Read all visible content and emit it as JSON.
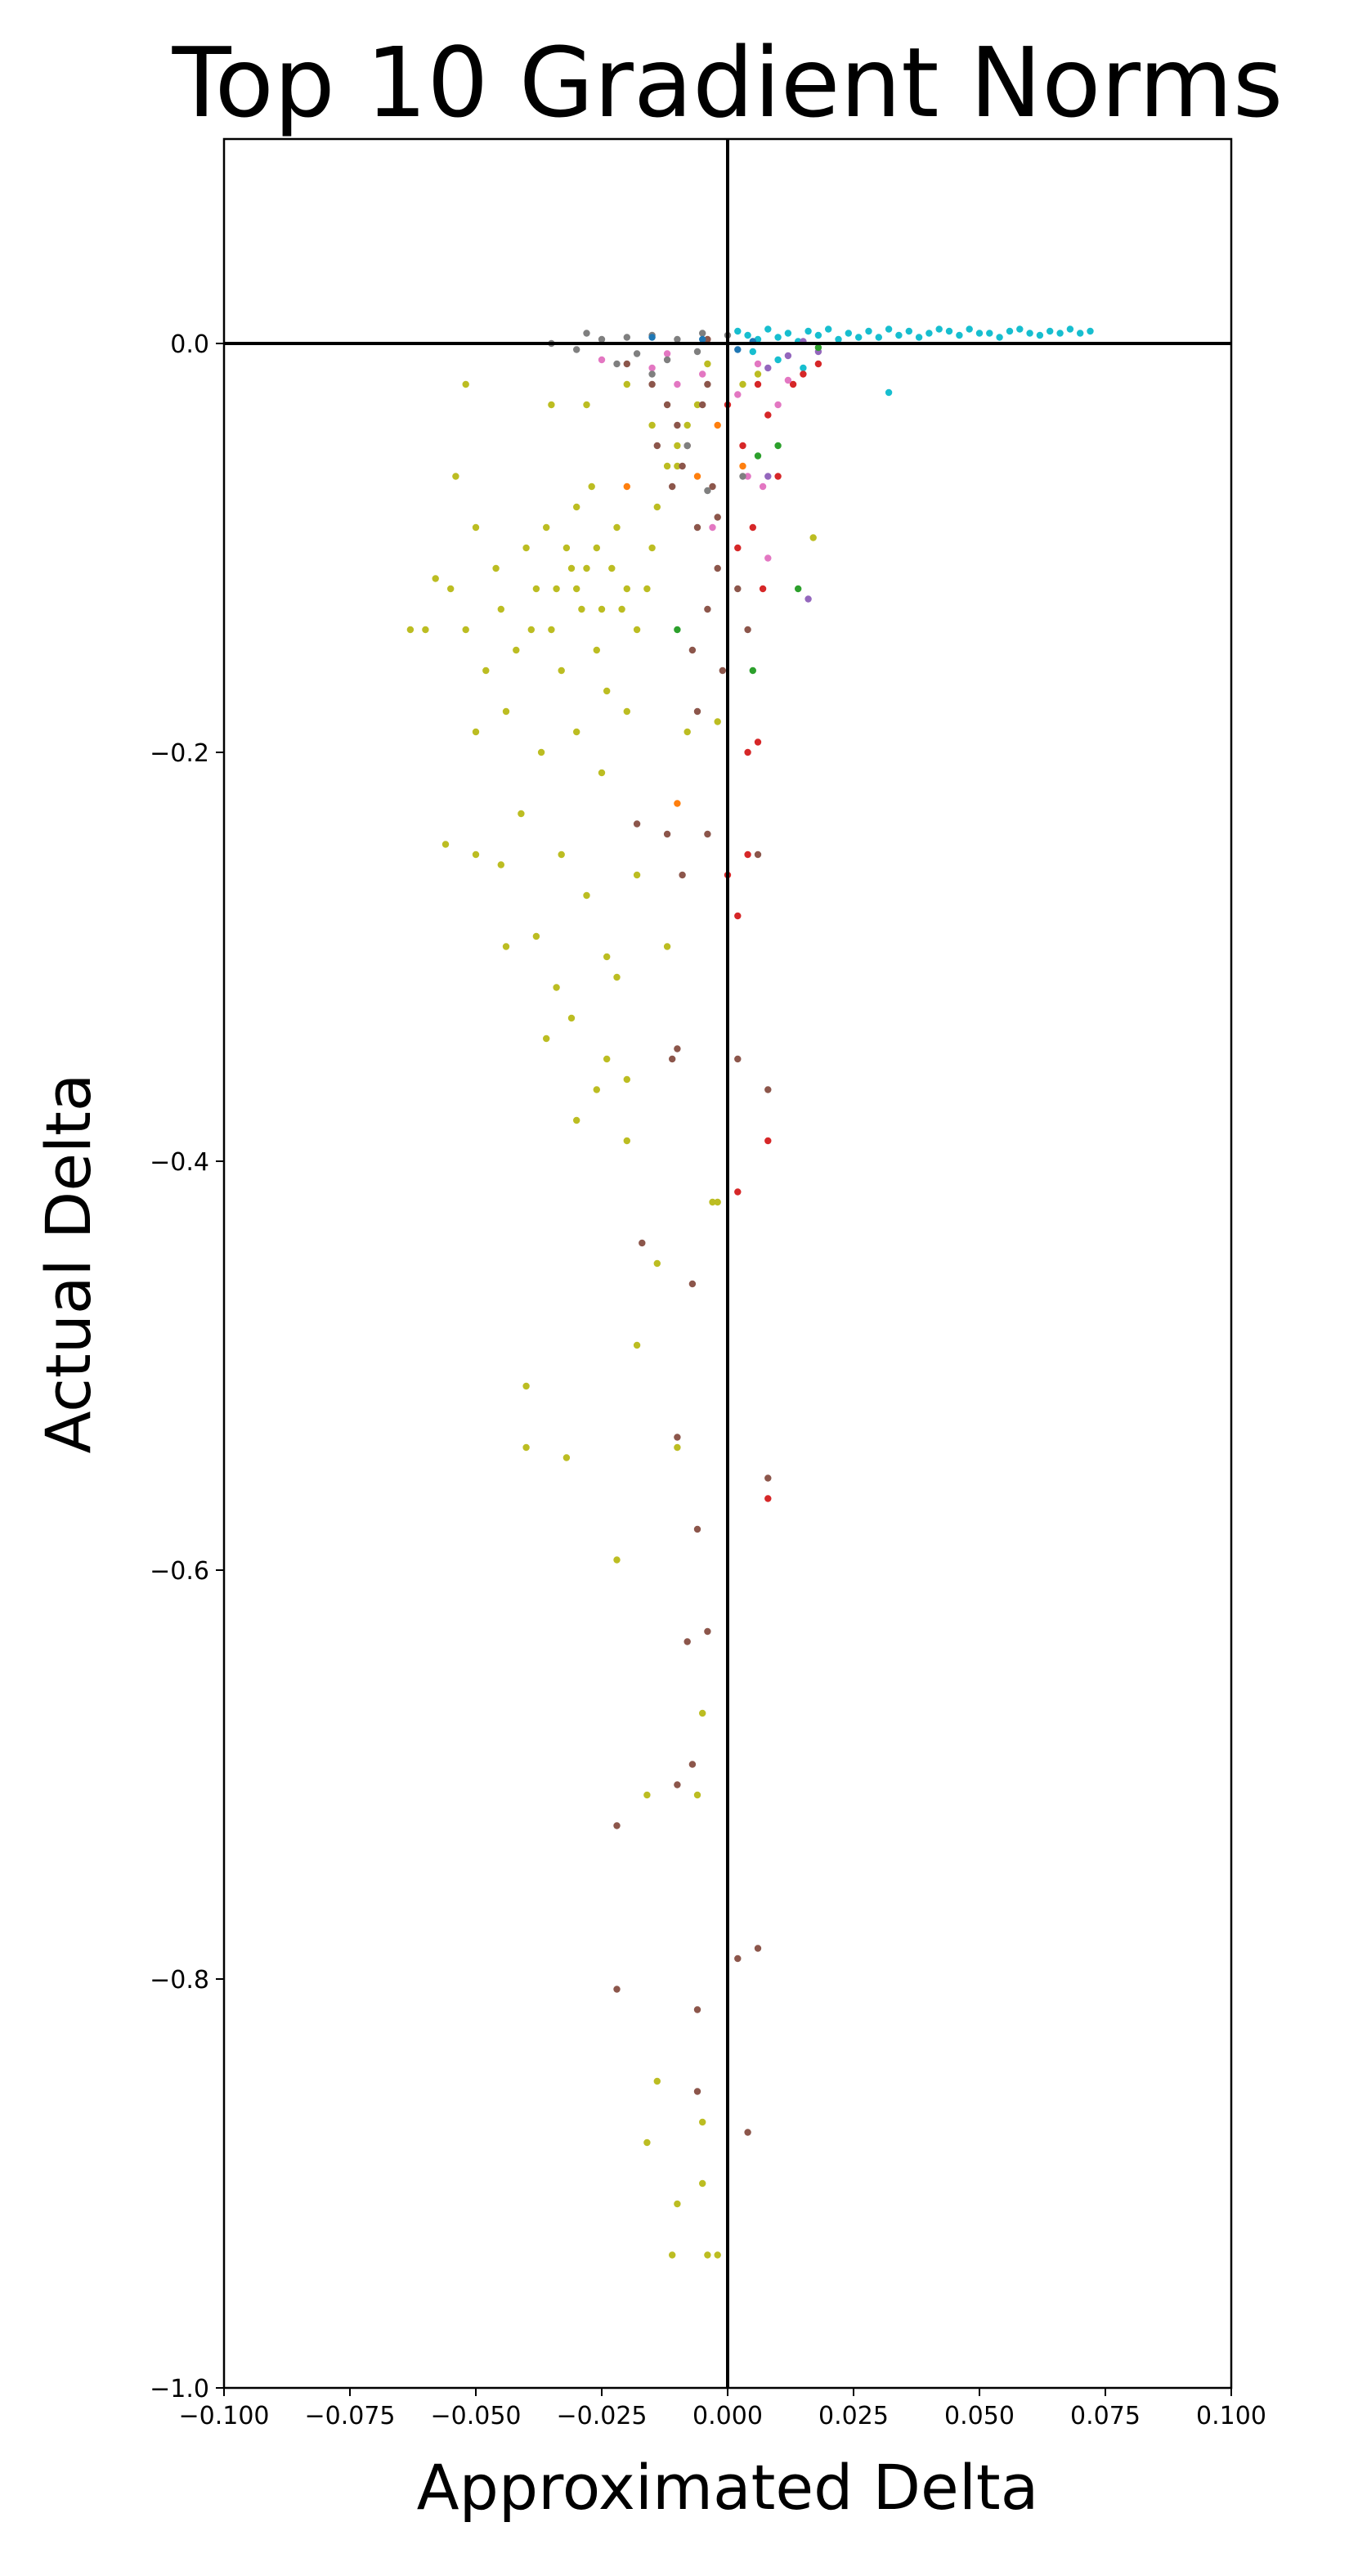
{
  "chart_data": {
    "type": "scatter",
    "title": "Top 10 Gradient Norms",
    "xlabel": "Approximated Delta",
    "ylabel": "Actual Delta",
    "xlim": [
      -0.1,
      0.1
    ],
    "ylim": [
      -1.0,
      0.1
    ],
    "xticks": [
      -0.1,
      -0.075,
      -0.05,
      -0.025,
      0.0,
      0.025,
      0.05,
      0.075,
      0.1
    ],
    "xtick_labels": [
      "−0.100",
      "−0.075",
      "−0.050",
      "−0.025",
      "0.000",
      "0.025",
      "0.050",
      "0.075",
      "0.100"
    ],
    "yticks": [
      0.0,
      -0.2,
      -0.4,
      -0.6,
      -0.8,
      -1.0
    ],
    "ytick_labels": [
      "0.0",
      "−0.2",
      "−0.4",
      "−0.6",
      "−0.8",
      "−1.0"
    ],
    "reference_lines": {
      "x": 0.0,
      "y": 0.0,
      "color": "#000000"
    },
    "grid": false,
    "legend": "none",
    "series": [
      {
        "color": "#17becf",
        "points": [
          [
            0.002,
            0.006
          ],
          [
            0.008,
            0.007
          ],
          [
            0.012,
            0.005
          ],
          [
            0.016,
            0.006
          ],
          [
            0.02,
            0.007
          ],
          [
            0.024,
            0.005
          ],
          [
            0.028,
            0.006
          ],
          [
            0.032,
            0.007
          ],
          [
            0.036,
            0.006
          ],
          [
            0.04,
            0.005
          ],
          [
            0.044,
            0.006
          ],
          [
            0.048,
            0.007
          ],
          [
            0.052,
            0.005
          ],
          [
            0.056,
            0.006
          ],
          [
            0.06,
            0.005
          ],
          [
            0.064,
            0.006
          ],
          [
            0.068,
            0.007
          ],
          [
            0.072,
            0.006
          ],
          [
            0.066,
            0.005
          ],
          [
            0.058,
            0.007
          ],
          [
            0.05,
            0.005
          ],
          [
            0.042,
            0.007
          ],
          [
            0.034,
            0.004
          ],
          [
            0.026,
            0.003
          ],
          [
            0.018,
            0.004
          ],
          [
            0.01,
            0.003
          ],
          [
            0.006,
            0.002
          ],
          [
            0.014,
            0.001
          ],
          [
            0.022,
            0.002
          ],
          [
            0.03,
            0.003
          ],
          [
            0.004,
            0.004
          ],
          [
            0.038,
            0.003
          ],
          [
            0.046,
            0.004
          ],
          [
            0.054,
            0.003
          ],
          [
            0.062,
            0.004
          ],
          [
            0.07,
            0.005
          ],
          [
            0.01,
            -0.008
          ],
          [
            0.005,
            -0.004
          ],
          [
            0.032,
            -0.024
          ],
          [
            0.015,
            -0.012
          ]
        ]
      },
      {
        "color": "#bcbd22",
        "points": [
          [
            -0.03,
            -0.12
          ],
          [
            -0.028,
            -0.11
          ],
          [
            -0.025,
            -0.13
          ],
          [
            -0.032,
            -0.1
          ],
          [
            -0.035,
            -0.14
          ],
          [
            -0.022,
            -0.09
          ],
          [
            -0.026,
            -0.15
          ],
          [
            -0.038,
            -0.12
          ],
          [
            -0.02,
            -0.12
          ],
          [
            -0.03,
            -0.08
          ],
          [
            -0.04,
            -0.1
          ],
          [
            -0.018,
            -0.14
          ],
          [
            -0.033,
            -0.16
          ],
          [
            -0.027,
            -0.07
          ],
          [
            -0.042,
            -0.15
          ],
          [
            -0.015,
            -0.1
          ],
          [
            -0.045,
            -0.13
          ],
          [
            -0.024,
            -0.17
          ],
          [
            -0.036,
            -0.09
          ],
          [
            -0.029,
            -0.13
          ],
          [
            -0.031,
            -0.11
          ],
          [
            -0.023,
            -0.11
          ],
          [
            -0.034,
            -0.12
          ],
          [
            -0.026,
            -0.1
          ],
          [
            -0.039,
            -0.14
          ],
          [
            -0.021,
            -0.13
          ],
          [
            -0.046,
            -0.11
          ],
          [
            -0.016,
            -0.12
          ],
          [
            -0.048,
            -0.16
          ],
          [
            -0.014,
            -0.08
          ],
          [
            -0.05,
            -0.09
          ],
          [
            -0.012,
            -0.06
          ],
          [
            -0.052,
            -0.14
          ],
          [
            -0.01,
            -0.05
          ],
          [
            -0.055,
            -0.12
          ],
          [
            -0.008,
            -0.04
          ],
          [
            -0.058,
            -0.115
          ],
          [
            -0.06,
            -0.14
          ],
          [
            -0.044,
            -0.18
          ],
          [
            -0.03,
            -0.19
          ],
          [
            -0.02,
            -0.18
          ],
          [
            -0.037,
            -0.2
          ],
          [
            -0.025,
            -0.21
          ],
          [
            -0.041,
            -0.23
          ],
          [
            -0.033,
            -0.25
          ],
          [
            -0.045,
            -0.255
          ],
          [
            -0.05,
            -0.25
          ],
          [
            -0.028,
            -0.27
          ],
          [
            -0.018,
            -0.26
          ],
          [
            -0.038,
            -0.29
          ],
          [
            -0.044,
            -0.295
          ],
          [
            -0.024,
            -0.3
          ],
          [
            -0.012,
            -0.295
          ],
          [
            -0.034,
            -0.315
          ],
          [
            -0.022,
            -0.31
          ],
          [
            -0.031,
            -0.33
          ],
          [
            -0.036,
            -0.34
          ],
          [
            -0.024,
            -0.35
          ],
          [
            -0.02,
            -0.36
          ],
          [
            -0.026,
            -0.365
          ],
          [
            -0.03,
            -0.38
          ],
          [
            -0.02,
            -0.39
          ],
          [
            -0.002,
            -0.42
          ],
          [
            -0.014,
            -0.45
          ],
          [
            -0.018,
            -0.49
          ],
          [
            -0.04,
            -0.51
          ],
          [
            -0.04,
            -0.54
          ],
          [
            -0.032,
            -0.545
          ],
          [
            -0.022,
            -0.595
          ],
          [
            -0.01,
            -0.54
          ],
          [
            -0.005,
            -0.67
          ],
          [
            -0.016,
            -0.71
          ],
          [
            -0.006,
            -0.71
          ],
          [
            -0.014,
            -0.85
          ],
          [
            -0.016,
            -0.88
          ],
          [
            -0.005,
            -0.87
          ],
          [
            -0.01,
            -0.91
          ],
          [
            -0.005,
            -0.9
          ],
          [
            -0.011,
            -0.935
          ],
          [
            -0.004,
            -0.935
          ],
          [
            -0.002,
            -0.935
          ],
          [
            -0.003,
            -0.42
          ],
          [
            -0.052,
            -0.02
          ],
          [
            -0.035,
            -0.03
          ],
          [
            -0.028,
            -0.03
          ],
          [
            -0.02,
            -0.02
          ],
          [
            -0.015,
            -0.04
          ],
          [
            -0.01,
            -0.06
          ],
          [
            -0.006,
            -0.03
          ],
          [
            -0.004,
            -0.01
          ],
          [
            0.003,
            -0.02
          ],
          [
            0.006,
            -0.015
          ],
          [
            0.017,
            -0.095
          ],
          [
            -0.008,
            -0.19
          ],
          [
            -0.002,
            -0.185
          ],
          [
            -0.056,
            -0.245
          ],
          [
            -0.063,
            -0.14
          ],
          [
            -0.054,
            -0.065
          ],
          [
            -0.05,
            -0.19
          ]
        ]
      },
      {
        "color": "#8c564b",
        "points": [
          [
            -0.005,
            -0.03
          ],
          [
            -0.008,
            -0.05
          ],
          [
            -0.003,
            -0.07
          ],
          [
            -0.01,
            -0.04
          ],
          [
            -0.006,
            -0.09
          ],
          [
            -0.002,
            -0.11
          ],
          [
            -0.004,
            -0.13
          ],
          [
            -0.007,
            -0.15
          ],
          [
            -0.001,
            -0.16
          ],
          [
            -0.009,
            -0.06
          ],
          [
            -0.012,
            -0.03
          ],
          [
            -0.014,
            -0.05
          ],
          [
            -0.004,
            -0.02
          ],
          [
            -0.011,
            -0.07
          ],
          [
            -0.002,
            -0.085
          ],
          [
            0.002,
            -0.12
          ],
          [
            0.004,
            -0.14
          ],
          [
            -0.006,
            -0.18
          ],
          [
            -0.012,
            -0.24
          ],
          [
            -0.009,
            -0.26
          ],
          [
            -0.011,
            -0.35
          ],
          [
            -0.01,
            -0.345
          ],
          [
            0.002,
            -0.35
          ],
          [
            -0.018,
            -0.235
          ],
          [
            -0.004,
            -0.24
          ],
          [
            -0.017,
            -0.44
          ],
          [
            -0.007,
            -0.46
          ],
          [
            0.008,
            -0.365
          ],
          [
            0.008,
            -0.555
          ],
          [
            -0.01,
            -0.535
          ],
          [
            -0.006,
            -0.58
          ],
          [
            -0.008,
            -0.635
          ],
          [
            -0.004,
            -0.63
          ],
          [
            -0.007,
            -0.695
          ],
          [
            -0.01,
            -0.705
          ],
          [
            -0.022,
            -0.725
          ],
          [
            0.006,
            -0.785
          ],
          [
            0.002,
            -0.79
          ],
          [
            -0.022,
            -0.805
          ],
          [
            -0.006,
            -0.815
          ],
          [
            -0.006,
            -0.855
          ],
          [
            0.004,
            -0.875
          ],
          [
            0.006,
            -0.25
          ],
          [
            -0.015,
            -0.02
          ],
          [
            -0.02,
            -0.01
          ],
          [
            -0.004,
            0.002
          ]
        ]
      },
      {
        "color": "#d62728",
        "points": [
          [
            0.0,
            -0.03
          ],
          [
            0.003,
            -0.05
          ],
          [
            0.006,
            -0.02
          ],
          [
            0.008,
            -0.035
          ],
          [
            0.01,
            -0.065
          ],
          [
            0.005,
            -0.09
          ],
          [
            0.013,
            -0.02
          ],
          [
            0.015,
            -0.015
          ],
          [
            0.018,
            -0.01
          ],
          [
            0.004,
            -0.2
          ],
          [
            0.004,
            -0.25
          ],
          [
            0.0,
            -0.26
          ],
          [
            0.002,
            -0.28
          ],
          [
            0.008,
            -0.39
          ],
          [
            0.002,
            -0.415
          ],
          [
            0.008,
            -0.565
          ],
          [
            0.006,
            -0.195
          ],
          [
            0.007,
            -0.12
          ],
          [
            0.002,
            -0.1
          ]
        ]
      },
      {
        "color": "#e377c2",
        "points": [
          [
            -0.025,
            -0.008
          ],
          [
            -0.015,
            -0.012
          ],
          [
            -0.01,
            -0.02
          ],
          [
            -0.005,
            -0.015
          ],
          [
            0.002,
            -0.025
          ],
          [
            0.006,
            -0.01
          ],
          [
            0.01,
            -0.03
          ],
          [
            0.004,
            -0.065
          ],
          [
            0.008,
            -0.105
          ],
          [
            -0.003,
            -0.09
          ],
          [
            0.007,
            -0.07
          ],
          [
            -0.012,
            -0.005
          ],
          [
            0.012,
            -0.018
          ]
        ]
      },
      {
        "color": "#7f7f7f",
        "points": [
          [
            -0.02,
            0.003
          ],
          [
            -0.015,
            0.004
          ],
          [
            -0.01,
            0.002
          ],
          [
            -0.005,
            0.005
          ],
          [
            0.0,
            0.004
          ],
          [
            -0.025,
            0.002
          ],
          [
            -0.03,
            -0.003
          ],
          [
            -0.035,
            0.0
          ],
          [
            -0.018,
            -0.005
          ],
          [
            -0.012,
            -0.008
          ],
          [
            -0.006,
            -0.004
          ],
          [
            -0.022,
            -0.01
          ],
          [
            -0.004,
            -0.072
          ],
          [
            -0.008,
            -0.05
          ],
          [
            0.003,
            -0.065
          ],
          [
            -0.015,
            -0.015
          ],
          [
            -0.028,
            0.005
          ]
        ]
      },
      {
        "color": "#9467bd",
        "points": [
          [
            0.015,
            0.001
          ],
          [
            0.012,
            -0.006
          ],
          [
            0.008,
            -0.012
          ],
          [
            0.016,
            -0.125
          ],
          [
            0.008,
            -0.065
          ],
          [
            0.018,
            -0.004
          ]
        ]
      },
      {
        "color": "#2ca02c",
        "points": [
          [
            0.01,
            -0.05
          ],
          [
            0.014,
            -0.12
          ],
          [
            0.005,
            -0.16
          ],
          [
            -0.01,
            -0.14
          ],
          [
            0.006,
            -0.055
          ],
          [
            0.018,
            -0.002
          ]
        ]
      },
      {
        "color": "#ff7f0e",
        "points": [
          [
            -0.02,
            -0.07
          ],
          [
            -0.006,
            -0.065
          ],
          [
            -0.01,
            -0.225
          ],
          [
            -0.002,
            -0.04
          ],
          [
            0.003,
            -0.06
          ]
        ]
      },
      {
        "color": "#1f77b4",
        "points": [
          [
            -0.015,
            0.003
          ],
          [
            -0.005,
            0.002
          ],
          [
            0.005,
            0.001
          ],
          [
            0.002,
            -0.003
          ]
        ]
      }
    ]
  }
}
